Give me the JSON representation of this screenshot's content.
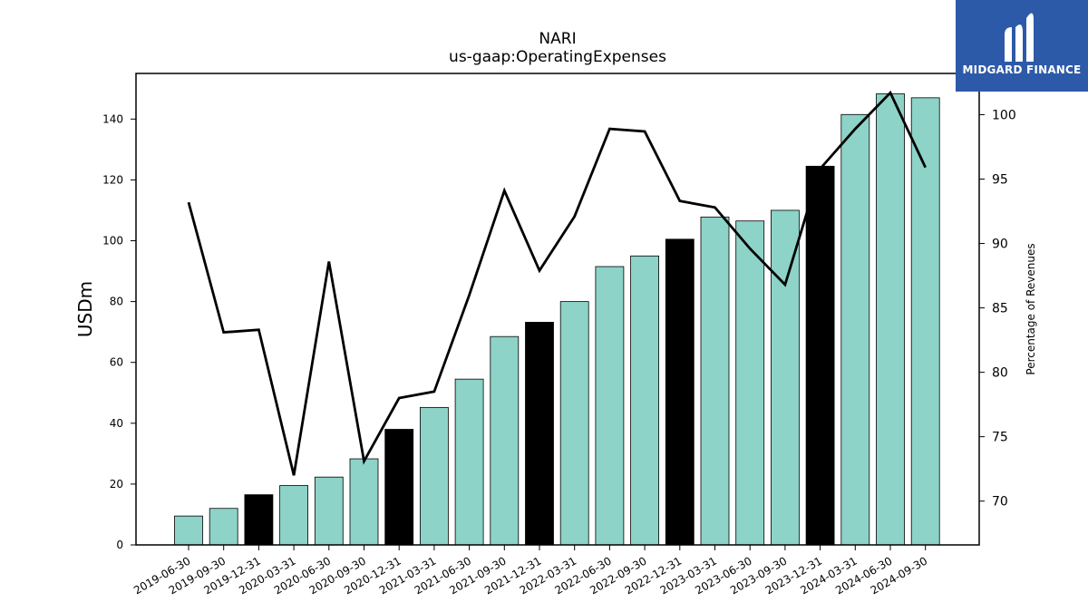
{
  "brand": {
    "name": "MIDGARD FINANCE",
    "logo_icon": "midgard-m-icon",
    "color": "#2d5aa8"
  },
  "chart_data": {
    "type": "bar",
    "title": "NARI",
    "subtitle": "us-gaap:OperatingExpenses",
    "ylabel": "USDm",
    "ylabel_right": "Percentage of Revenues",
    "ylim": [
      0,
      155
    ],
    "ylim_right": [
      66.6,
      103.2
    ],
    "yticks": [
      0,
      20,
      40,
      60,
      80,
      100,
      120,
      140
    ],
    "yticks_right": [
      70,
      75,
      80,
      85,
      90,
      95,
      100
    ],
    "categories": [
      "2019-06-30",
      "2019-09-30",
      "2019-12-31",
      "2020-03-31",
      "2020-06-30",
      "2020-09-30",
      "2020-12-31",
      "2021-03-31",
      "2021-06-30",
      "2021-09-30",
      "2021-12-31",
      "2022-03-31",
      "2022-06-30",
      "2022-09-30",
      "2022-12-31",
      "2023-03-31",
      "2023-06-30",
      "2023-09-30",
      "2023-12-31",
      "2024-03-31",
      "2024-06-30",
      "2024-09-30"
    ],
    "series": [
      {
        "type": "bar",
        "axis": "left",
        "values": [
          9.5,
          12,
          16.5,
          19.5,
          22.3,
          28.3,
          38,
          45.2,
          54.5,
          68.5,
          73.2,
          80,
          91.5,
          95,
          100.5,
          107.8,
          106.5,
          110,
          124.5,
          141.5,
          148.3,
          147
        ],
        "colors": [
          "#8dd3c7",
          "#8dd3c7",
          "#000000",
          "#8dd3c7",
          "#8dd3c7",
          "#8dd3c7",
          "#000000",
          "#8dd3c7",
          "#8dd3c7",
          "#8dd3c7",
          "#000000",
          "#8dd3c7",
          "#8dd3c7",
          "#8dd3c7",
          "#000000",
          "#8dd3c7",
          "#8dd3c7",
          "#8dd3c7",
          "#000000",
          "#8dd3c7",
          "#8dd3c7",
          "#8dd3c7"
        ]
      },
      {
        "type": "line",
        "axis": "right",
        "color": "#000000",
        "values": [
          93.2,
          83.1,
          83.3,
          72.0,
          88.6,
          73.1,
          78.0,
          78.5,
          86.0,
          94.1,
          87.9,
          92.1,
          98.9,
          98.7,
          93.3,
          92.8,
          89.6,
          86.8,
          95.8,
          98.9,
          101.7,
          95.9
        ]
      }
    ],
    "legend": "none",
    "grid": false
  }
}
